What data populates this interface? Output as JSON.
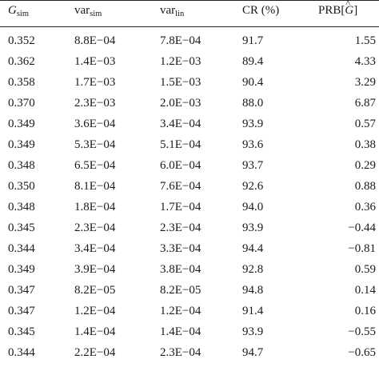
{
  "table": {
    "headers": {
      "g_sim": {
        "main": "G",
        "sub": "sim"
      },
      "var_sim": {
        "main": "var",
        "sub": "sim"
      },
      "var_lin": {
        "main": "var",
        "sub": "lin"
      },
      "cr": "CR (%)",
      "prb": {
        "prefix": "PRB[",
        "var": "G",
        "hat": "^",
        "suffix": "]"
      }
    },
    "rows": [
      [
        "0.352",
        "8.8E−04",
        "7.8E−04",
        "91.7",
        "1.55"
      ],
      [
        "0.362",
        "1.4E−03",
        "1.2E−03",
        "89.4",
        "4.33"
      ],
      [
        "0.358",
        "1.7E−03",
        "1.5E−03",
        "90.4",
        "3.29"
      ],
      [
        "0.370",
        "2.3E−03",
        "2.0E−03",
        "88.0",
        "6.87"
      ],
      [
        "0.349",
        "3.6E−04",
        "3.4E−04",
        "93.9",
        "0.57"
      ],
      [
        "0.349",
        "5.3E−04",
        "5.1E−04",
        "93.6",
        "0.38"
      ],
      [
        "0.348",
        "6.5E−04",
        "6.0E−04",
        "93.7",
        "0.29"
      ],
      [
        "0.350",
        "8.1E−04",
        "7.6E−04",
        "92.6",
        "0.88"
      ],
      [
        "0.348",
        "1.8E−04",
        "1.7E−04",
        "94.0",
        "0.36"
      ],
      [
        "0.345",
        "2.3E−04",
        "2.3E−04",
        "93.9",
        "−0.44"
      ],
      [
        "0.344",
        "3.4E−04",
        "3.3E−04",
        "94.4",
        "−0.81"
      ],
      [
        "0.349",
        "3.9E−04",
        "3.8E−04",
        "92.8",
        "0.59"
      ],
      [
        "0.347",
        "8.2E−05",
        "8.2E−05",
        "94.8",
        "0.14"
      ],
      [
        "0.347",
        "1.2E−04",
        "1.2E−04",
        "91.4",
        "0.16"
      ],
      [
        "0.345",
        "1.4E−04",
        "1.4E−04",
        "93.9",
        "−0.55"
      ],
      [
        "0.344",
        "2.2E−04",
        "2.3E−04",
        "94.7",
        "−0.65"
      ]
    ]
  }
}
